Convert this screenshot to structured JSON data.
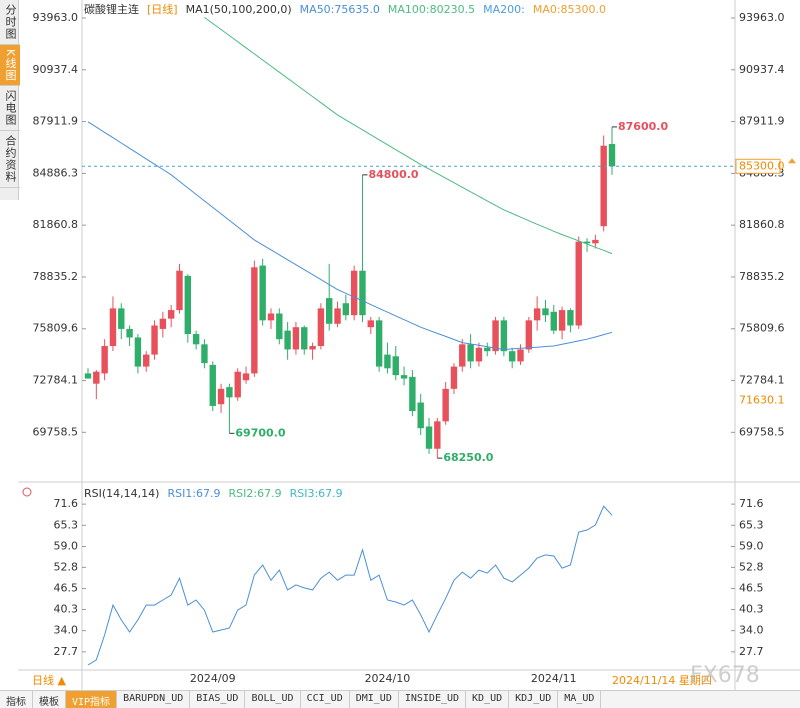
{
  "sidebar": [
    "分时图",
    "K线图",
    "闪电图",
    "合约资料"
  ],
  "status": {
    "period": "日线 ▲",
    "date": "2024/11/14 星期四"
  },
  "tabs": [
    "指标",
    "模板",
    "VIP指标",
    "BARUPDN_UD",
    "BIAS_UD",
    "BOLL_UD",
    "CCI_UD",
    "DMI_UD",
    "INSIDE_UD",
    "KD_UD",
    "KDJ_UD",
    "MA_UD"
  ],
  "watermark": "FX678",
  "chart_data": [
    {
      "type": "candlestick",
      "title": "碳酸锂主连",
      "period": "[日线]",
      "indicator": "MA1(50,100,200,0)",
      "up_color": "#e8505b",
      "down_color": "#2fae6a",
      "categories": [
        null,
        null,
        null,
        null,
        null,
        null,
        null,
        null,
        null,
        null,
        null,
        null,
        null,
        null,
        null,
        "2024/09",
        null,
        null,
        null,
        null,
        null,
        null,
        null,
        null,
        null,
        null,
        null,
        null,
        null,
        null,
        null,
        null,
        null,
        null,
        null,
        null,
        "2024/10",
        null,
        null,
        null,
        null,
        null,
        null,
        null,
        null,
        null,
        null,
        null,
        null,
        null,
        null,
        null,
        null,
        null,
        null,
        null,
        "2024/11",
        null,
        null,
        null,
        null,
        null,
        null,
        null
      ],
      "open": [
        73200,
        72600,
        73200,
        74800,
        77000,
        75800,
        75300,
        73600,
        74300,
        75800,
        76400,
        76900,
        78900,
        75500,
        74900,
        73700,
        71400,
        72400,
        71800,
        72800,
        73200,
        79500,
        76300,
        76700,
        75700,
        74600,
        75900,
        74600,
        74800,
        77600,
        76100,
        77300,
        76600,
        79200,
        75900,
        76300,
        74300,
        74200,
        73100,
        73000,
        71500,
        70100,
        68800,
        70400,
        72300,
        73600,
        74900,
        73900,
        74700,
        74500,
        76300,
        74500,
        73900,
        74600,
        76300,
        77000,
        76800,
        75700,
        76900,
        76000,
        80900,
        80800,
        81800,
        86600
      ],
      "high": [
        73500,
        73400,
        75200,
        77700,
        77300,
        76000,
        75500,
        74500,
        76300,
        76800,
        77200,
        79600,
        79000,
        75700,
        75200,
        73900,
        72600,
        72600,
        73500,
        73600,
        79800,
        79900,
        77000,
        77000,
        76200,
        76200,
        76000,
        75000,
        77300,
        79600,
        77400,
        77800,
        79500,
        84800,
        76500,
        76500,
        75000,
        74800,
        73600,
        73400,
        72000,
        70600,
        70600,
        72700,
        73800,
        75200,
        75500,
        75000,
        75000,
        76500,
        76500,
        74700,
        74900,
        76500,
        77700,
        77500,
        77200,
        77100,
        77000,
        81200,
        81100,
        81300,
        87100,
        87600
      ],
      "low": [
        72900,
        71700,
        72800,
        74500,
        75200,
        74800,
        73200,
        73300,
        74000,
        75300,
        75900,
        76700,
        75000,
        74600,
        73500,
        71000,
        70900,
        69700,
        71600,
        72600,
        73000,
        76000,
        75800,
        74900,
        74000,
        74300,
        74300,
        74000,
        74600,
        75700,
        75900,
        76300,
        76300,
        76200,
        75500,
        73300,
        73200,
        72800,
        72500,
        70700,
        69600,
        68500,
        68250,
        70200,
        72000,
        73300,
        73500,
        73600,
        74200,
        74300,
        74200,
        73500,
        73700,
        74400,
        75700,
        76200,
        75500,
        75200,
        75600,
        75800,
        80300,
        80500,
        81500,
        84800
      ],
      "close": [
        72900,
        73300,
        74800,
        77000,
        75800,
        75300,
        73600,
        74300,
        76000,
        76400,
        76900,
        79200,
        75500,
        74900,
        73800,
        71300,
        72300,
        71800,
        73300,
        73200,
        79400,
        76300,
        76700,
        75200,
        74600,
        75900,
        74600,
        74800,
        77000,
        76100,
        77000,
        76600,
        79200,
        76600,
        76300,
        73600,
        73500,
        73100,
        72900,
        71000,
        70000,
        68800,
        70400,
        72300,
        73600,
        74900,
        73900,
        74700,
        74500,
        76300,
        74500,
        73900,
        74600,
        76300,
        77000,
        76600,
        75700,
        76900,
        76000,
        80900,
        80800,
        81000,
        86500,
        85300
      ],
      "series": [
        {
          "name": "MA50:75635.0",
          "color": "#4a8fd8",
          "values": [
            87900,
            87590,
            87280,
            86970,
            86660,
            86350,
            86040,
            85730,
            85420,
            85110,
            84800,
            84420,
            84040,
            83660,
            83280,
            82900,
            82520,
            82140,
            81760,
            81380,
            81000,
            80710,
            80420,
            80130,
            79840,
            79550,
            79260,
            78970,
            78680,
            78390,
            78100,
            77880,
            77660,
            77440,
            77220,
            77000,
            76780,
            76560,
            76340,
            76120,
            75900,
            75720,
            75540,
            75360,
            75180,
            75000,
            74920,
            74840,
            74760,
            74680,
            74600,
            74630,
            74670,
            74700,
            74730,
            74770,
            74800,
            74900,
            75000,
            75100,
            75200,
            75330,
            75470,
            75600
          ]
        },
        {
          "name": "MA100:80230.5",
          "color": "#4cbb7f",
          "values": [
            null,
            null,
            null,
            null,
            null,
            null,
            null,
            null,
            null,
            null,
            null,
            null,
            null,
            null,
            94000,
            93644,
            93288,
            92932,
            92576,
            92220,
            91864,
            91508,
            91152,
            90796,
            90440,
            90084,
            89728,
            89372,
            89016,
            88660,
            88300,
            88010,
            87720,
            87430,
            87140,
            86850,
            86560,
            86270,
            85980,
            85690,
            85400,
            85135,
            84870,
            84605,
            84340,
            84075,
            83810,
            83545,
            83280,
            83015,
            82750,
            82540,
            82330,
            82120,
            81910,
            81710,
            81500,
            81310,
            81130,
            80940,
            80760,
            80570,
            80390,
            80200
          ]
        }
      ],
      "legend_extra": [
        {
          "name": "MA200:",
          "color": "#4a9ee0"
        },
        {
          "name": "MA0:85300.0",
          "color": "#f0a030"
        }
      ],
      "annotations": [
        {
          "value": 87600,
          "label": "87600.0"
        },
        {
          "value": 84800,
          "label": "84800.0"
        },
        {
          "value": 69700,
          "label": "69700.0"
        },
        {
          "value": 68250,
          "label": "68250.0"
        }
      ],
      "last_price": {
        "value": 85300,
        "label": "85300.0"
      },
      "cursor_price": 71630.1,
      "ylim": [
        67850,
        94430
      ],
      "yticks": [
        {
          "value": 93963,
          "label": "93963.0"
        },
        90937.4,
        87911.9,
        84886.3,
        81860.8,
        78835.2,
        75809.6,
        72784.1,
        69758.5
      ]
    },
    {
      "type": "line",
      "title": "RSI(14,14,14)",
      "series": [
        {
          "name": "RSI1:67.9",
          "color": "#4a8fd8",
          "values": [
            23.8,
            25.3,
            32.7,
            41.6,
            37.2,
            33.6,
            37.2,
            41.6,
            41.6,
            43.1,
            44.6,
            49.6,
            41.6,
            43.1,
            40.1,
            33.6,
            34.2,
            34.8,
            40.1,
            41.6,
            50.5,
            53.5,
            49.0,
            52.0,
            46.1,
            47.6,
            46.7,
            46.1,
            49.6,
            51.4,
            49.0,
            50.5,
            50.5,
            58.0,
            49.0,
            50.5,
            43.1,
            42.5,
            41.6,
            43.1,
            38.7,
            33.6,
            38.7,
            43.6,
            49.0,
            51.4,
            49.6,
            52.0,
            51.1,
            53.5,
            49.6,
            48.5,
            50.5,
            52.6,
            55.6,
            56.5,
            56.2,
            52.6,
            53.5,
            63.3,
            63.9,
            65.4,
            71.0,
            68.3
          ]
        }
      ],
      "legend_extra": [
        {
          "name": "RSI2:67.9",
          "color": "#4cbb7f"
        },
        {
          "name": "RSI3:67.9",
          "color": "#3fb6c8"
        }
      ],
      "ylim": [
        22.9,
        75.8
      ],
      "yticks": [
        71.6,
        65.3,
        {
          "value": 59,
          "label": "59.0"
        },
        52.8,
        46.5,
        40.3,
        {
          "value": 34,
          "label": "34.0"
        },
        27.7
      ]
    }
  ]
}
